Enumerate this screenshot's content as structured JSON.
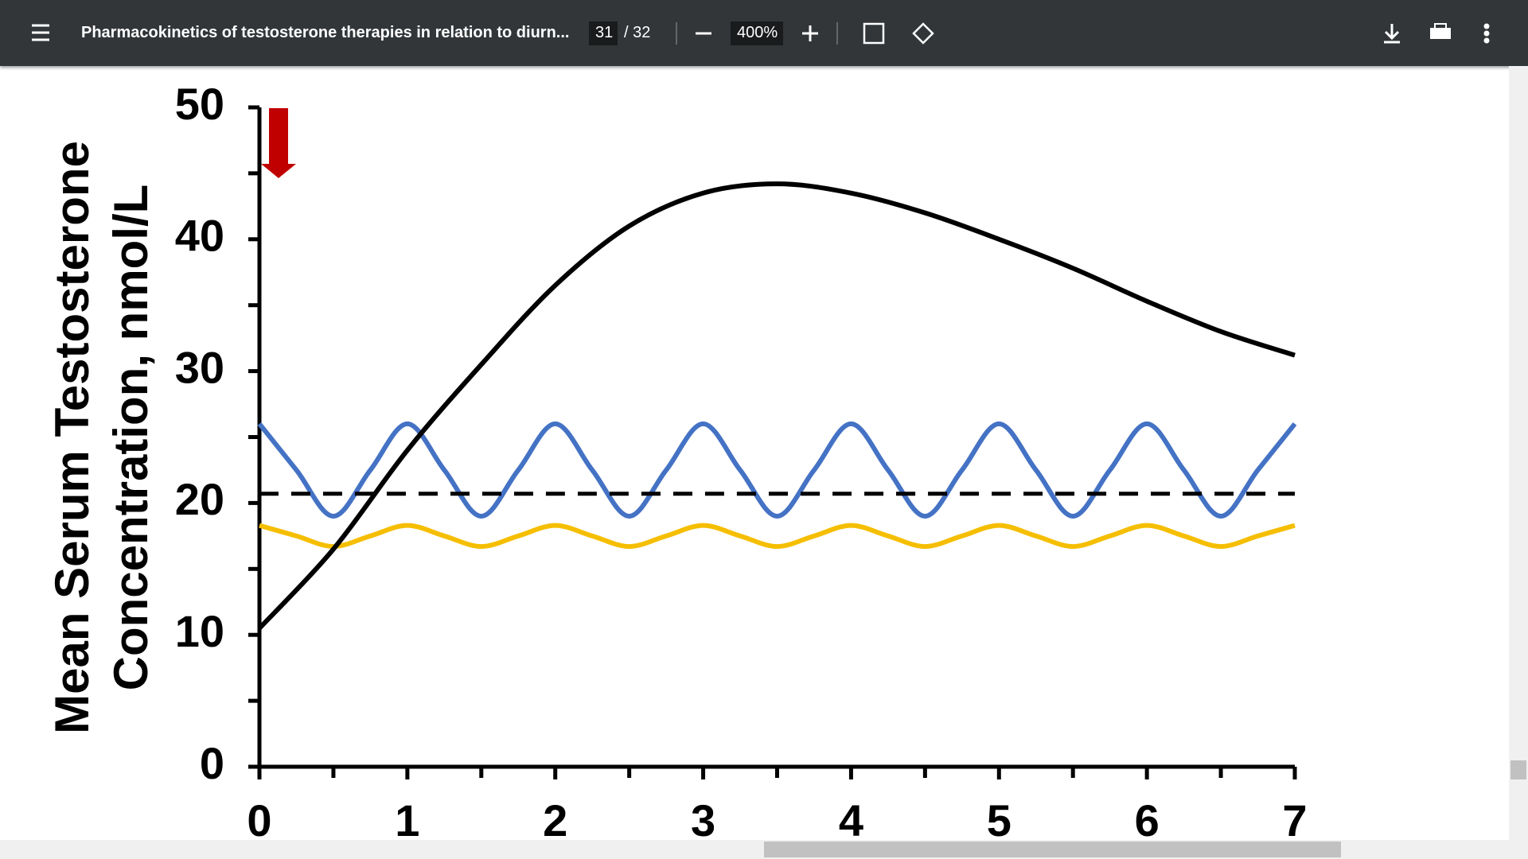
{
  "toolbar": {
    "title": "Pharmacokinetics of testosterone therapies in relation to diurn...",
    "page": "31",
    "page_total": "/ 32",
    "zoom": "400%"
  },
  "chart_data": {
    "type": "line",
    "ylabel_lines": [
      "Mean Serum Testosterone",
      "Concentration, nmol/L"
    ],
    "xlim": [
      0,
      7
    ],
    "xticks": [
      0,
      1,
      2,
      3,
      4,
      5,
      6,
      7
    ],
    "xminor": [
      0.5,
      1.5,
      2.5,
      3.5,
      4.5,
      5.5,
      6.5
    ],
    "ylim": [
      0,
      50
    ],
    "yticks": [
      0,
      10,
      20,
      30,
      40,
      50
    ],
    "yminor": [
      5,
      15,
      25,
      35,
      45
    ],
    "series": [
      {
        "color": "#000000",
        "x": [
          0,
          0.5,
          1,
          1.5,
          2,
          2.5,
          3,
          3.5,
          4,
          4.5,
          5,
          5.5,
          6,
          6.5,
          7
        ],
        "values": [
          10.5,
          16.5,
          24,
          30.5,
          36.5,
          41,
          43.5,
          44.2,
          43.5,
          42,
          40,
          37.8,
          35.3,
          33,
          31.2
        ]
      },
      {
        "color": "#4472c4",
        "x": [
          0,
          0.25,
          0.5,
          0.75,
          1,
          1.25,
          1.5,
          1.75,
          2,
          2.25,
          2.5,
          2.75,
          3,
          3.25,
          3.5,
          3.75,
          4,
          4.25,
          4.5,
          4.75,
          5,
          5.25,
          5.5,
          5.75,
          6,
          6.25,
          6.5,
          6.75,
          7
        ],
        "values": [
          26,
          22.5,
          19,
          22.5,
          26,
          22.5,
          19,
          22.5,
          26,
          22.5,
          19,
          22.5,
          26,
          22.5,
          19,
          22.5,
          26,
          22.5,
          19,
          22.5,
          26,
          22.5,
          19,
          22.5,
          26,
          22.5,
          19,
          22.5,
          26
        ]
      },
      {
        "color": "#f5be00",
        "x": [
          0,
          0.25,
          0.5,
          0.75,
          1,
          1.25,
          1.5,
          1.75,
          2,
          2.25,
          2.5,
          2.75,
          3,
          3.25,
          3.5,
          3.75,
          4,
          4.25,
          4.5,
          4.75,
          5,
          5.25,
          5.5,
          5.75,
          6,
          6.25,
          6.5,
          6.75,
          7
        ],
        "values": [
          18.3,
          17.5,
          16.7,
          17.5,
          18.3,
          17.5,
          16.7,
          17.5,
          18.3,
          17.5,
          16.7,
          17.5,
          18.3,
          17.5,
          16.7,
          17.5,
          18.3,
          17.5,
          16.7,
          17.5,
          18.3,
          17.5,
          16.7,
          17.5,
          18.3,
          17.5,
          16.7,
          17.5,
          18.3
        ]
      },
      {
        "color": "#000000",
        "dashed": true,
        "x": [
          0,
          7
        ],
        "values": [
          20.7,
          20.7
        ]
      }
    ]
  }
}
